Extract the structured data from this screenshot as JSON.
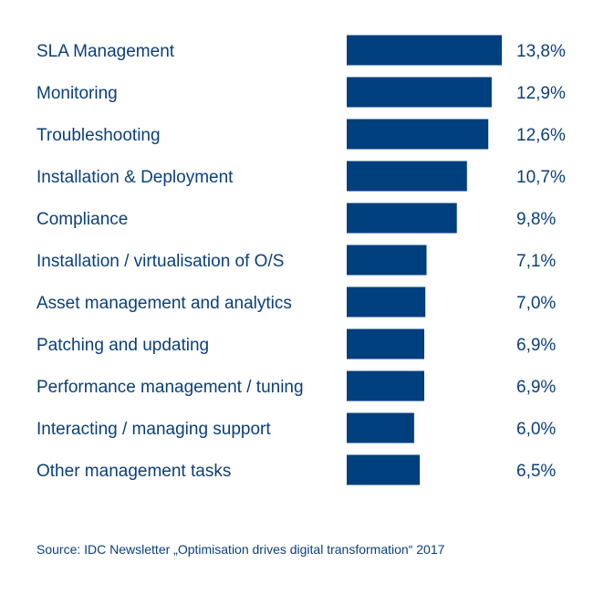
{
  "chart_data": {
    "type": "bar",
    "orientation": "horizontal",
    "categories": [
      "SLA Management",
      "Monitoring",
      "Troubleshooting",
      "Installation & Deployment",
      "Compliance",
      "Installation / virtualisation of O/S",
      "Asset management and analytics",
      "Patching and updating",
      "Performance management / tuning",
      "Interacting / managing support",
      "Other management tasks"
    ],
    "values": [
      13.8,
      12.9,
      12.6,
      10.7,
      9.8,
      7.1,
      7.0,
      6.9,
      6.9,
      6.0,
      6.5
    ],
    "value_labels": [
      "13,8%",
      "12,9%",
      "12,6%",
      "10,7%",
      "9,8%",
      "7,1%",
      "7,0%",
      "6,9%",
      "6,9%",
      "6,0%",
      "6,5%"
    ],
    "bar_color": "#003f7d",
    "text_color": "#0b3f7a",
    "xlim": [
      0,
      13.8
    ],
    "grid": false,
    "legend": "none"
  },
  "footer": {
    "source": "Source: IDC Newsletter „Optimisation drives digital transformation“ 2017"
  }
}
